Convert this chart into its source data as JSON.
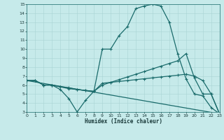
{
  "xlabel": "Humidex (Indice chaleur)",
  "xlim": [
    0,
    23
  ],
  "ylim": [
    3,
    15
  ],
  "yticks": [
    3,
    4,
    5,
    6,
    7,
    8,
    9,
    10,
    11,
    12,
    13,
    14,
    15
  ],
  "xticks": [
    0,
    1,
    2,
    3,
    4,
    5,
    6,
    7,
    8,
    9,
    10,
    11,
    12,
    13,
    14,
    15,
    16,
    17,
    18,
    19,
    20,
    21,
    22,
    23
  ],
  "bg_color": "#c6eaea",
  "grid_color": "#a8d4d4",
  "line_color": "#1a6b6b",
  "line1_x": [
    0,
    1,
    2,
    3,
    4,
    5,
    6,
    7,
    8,
    9,
    10,
    11,
    12,
    13,
    14,
    15,
    16,
    17,
    18,
    19,
    20,
    21,
    22,
    23
  ],
  "line1_y": [
    6.5,
    6.5,
    6.0,
    6.0,
    5.5,
    4.5,
    3.0,
    4.3,
    5.3,
    10.0,
    10.0,
    11.5,
    12.5,
    14.5,
    14.8,
    15.0,
    14.8,
    13.0,
    9.5,
    6.7,
    5.0,
    4.8,
    3.5,
    2.8
  ],
  "line2_x": [
    0,
    1,
    2,
    3,
    4,
    5,
    6,
    7,
    8,
    9,
    10,
    11,
    12,
    13,
    14,
    15,
    16,
    17,
    18,
    19,
    20,
    21,
    22,
    23
  ],
  "line2_y": [
    6.5,
    6.5,
    6.0,
    6.0,
    5.8,
    5.7,
    5.5,
    5.4,
    5.3,
    6.2,
    6.3,
    6.4,
    6.5,
    6.6,
    6.7,
    6.8,
    6.9,
    7.0,
    7.1,
    7.2,
    7.0,
    6.5,
    5.0,
    2.8
  ],
  "line3_x": [
    0,
    23
  ],
  "line3_y": [
    6.5,
    2.8
  ],
  "line4_x": [
    0,
    1,
    2,
    3,
    4,
    5,
    6,
    7,
    8,
    9,
    10,
    11,
    12,
    13,
    14,
    15,
    16,
    17,
    18,
    19,
    20,
    21,
    22,
    23
  ],
  "line4_y": [
    6.5,
    6.5,
    6.0,
    6.0,
    5.8,
    5.6,
    5.5,
    5.4,
    5.3,
    6.0,
    6.3,
    6.6,
    6.9,
    7.2,
    7.5,
    7.8,
    8.1,
    8.4,
    8.7,
    9.5,
    6.8,
    5.0,
    5.0,
    2.8
  ]
}
